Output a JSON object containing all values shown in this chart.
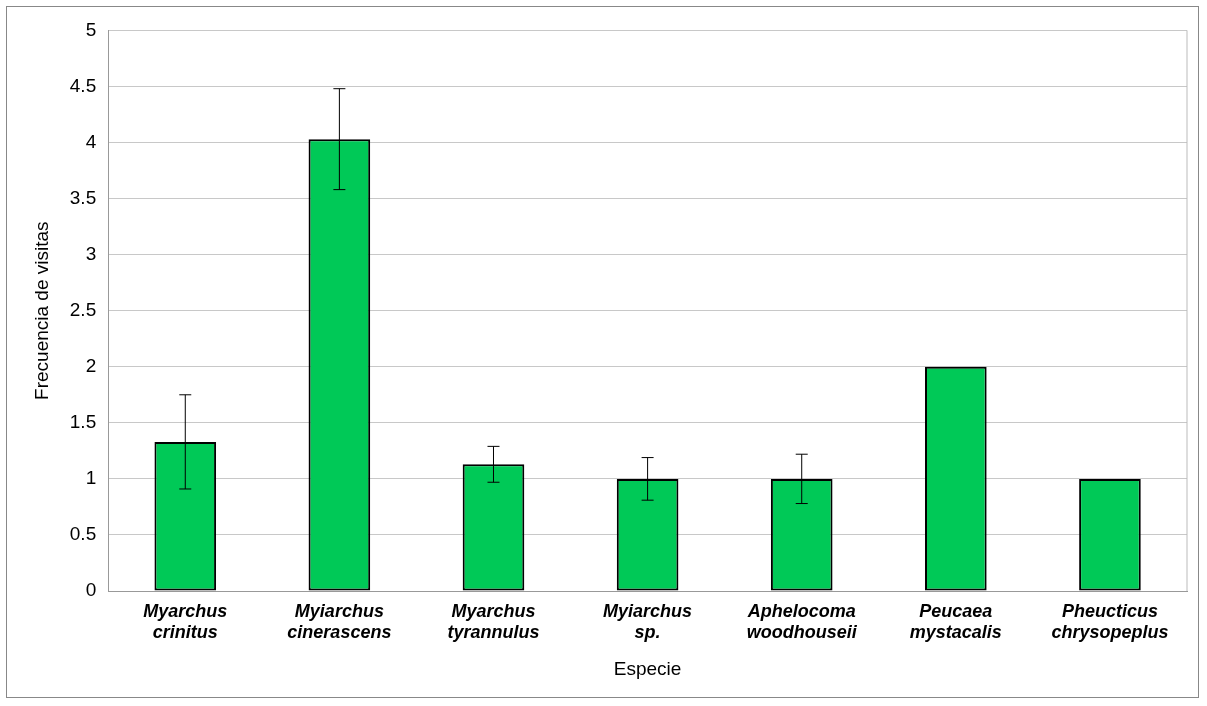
{
  "chart_data": {
    "type": "bar",
    "xlabel": "Especie",
    "ylabel": "Frecuencia de visitas",
    "categories": [
      "Myarchus crinitus",
      "Myiarchus cinerascens",
      "Myarchus tyrannulus",
      "Myiarchus sp.",
      "Aphelocoma woodhouseii",
      "Peucaea mystacalis",
      "Pheucticus chrysopeplus"
    ],
    "values": [
      1.33,
      4.03,
      1.13,
      1.0,
      1.0,
      2.0,
      1.0
    ],
    "errors": [
      0.42,
      0.45,
      0.16,
      0.19,
      0.22,
      null,
      null
    ],
    "color": "#00c957",
    "ylim": [
      0,
      5
    ],
    "yticks": [
      0,
      0.5,
      1,
      1.5,
      2,
      2.5,
      3,
      3.5,
      4,
      4.5,
      5
    ],
    "grid": "y"
  }
}
